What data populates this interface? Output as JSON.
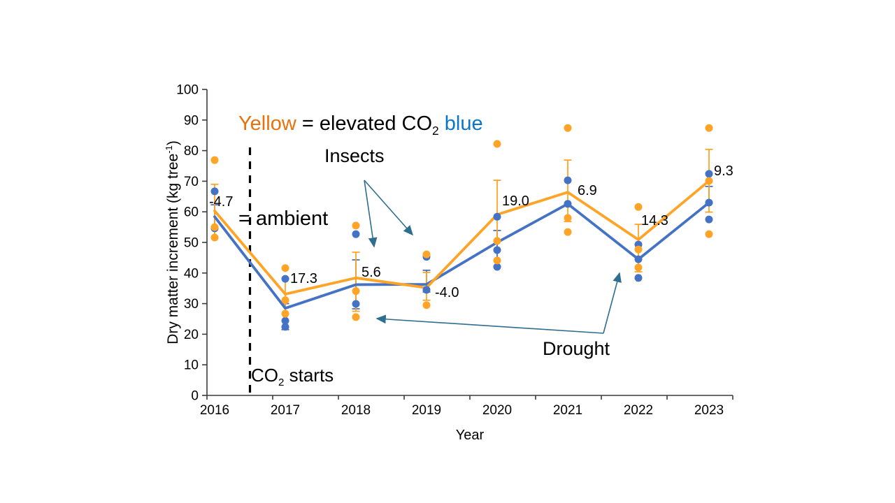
{
  "legend": {
    "yellow_word": "Yellow",
    "mid": " = elevated CO",
    "sub": "2",
    "blue_word": " blue",
    "line2": "= ambient"
  },
  "annotations": {
    "insects": {
      "text": "Insects",
      "points_to": [
        "2018 canopy damage",
        "2019 canopy damage"
      ]
    },
    "drought": {
      "text": "Drought",
      "points_to": [
        "2018 low increment",
        "2022 low increment"
      ]
    },
    "co2_starts": {
      "pre": "CO",
      "sub": "2",
      "post": " starts",
      "line_x_year": 2016.5
    }
  },
  "colors": {
    "elevated": "#FFA426",
    "ambient": "#4472C4",
    "legend_yellow_word": "#E8720C",
    "legend_blue_word": "#0B76C8",
    "arrow": "#2E6E8E",
    "axis": "#3b3b3b",
    "dashed_line": "#000000",
    "label_text": "#000000"
  },
  "chart_data": {
    "type": "line+scatter",
    "x": [
      2016,
      2017,
      2018,
      2019,
      2020,
      2021,
      2022,
      2023
    ],
    "xlabel": "Year",
    "ylabel": {
      "pre": "Dry matter increment (kg tree",
      "sup": "-1",
      "post": ")"
    },
    "ylim": [
      0,
      100
    ],
    "yticks": [
      0,
      10,
      20,
      30,
      40,
      50,
      60,
      70,
      80,
      90,
      100
    ],
    "grid": false,
    "legend_position": "top-center-text",
    "series": [
      {
        "name": "elevated CO2",
        "color_key": "elevated",
        "line": [
          60.3,
          33.1,
          38.4,
          35.2,
          59.1,
          66.4,
          50.9,
          70.1
        ],
        "points": [
          [
            76.9,
            55.0,
            51.6
          ],
          [
            41.6,
            31.1,
            26.7
          ],
          [
            55.5,
            34.1,
            25.6
          ],
          [
            46.1,
            29.5
          ],
          [
            82.2,
            50.5,
            44.1
          ],
          [
            87.4,
            58.0,
            53.4
          ],
          [
            61.6,
            47.7,
            41.8
          ],
          [
            87.4,
            70.1,
            52.7
          ]
        ],
        "error": [
          [
            51.6,
            69.0
          ],
          [
            26.7,
            38.1
          ],
          [
            27.5,
            46.8
          ],
          [
            31.1,
            40.2
          ],
          [
            50.5,
            70.3
          ],
          [
            56.8,
            76.9
          ],
          [
            40.4,
            55.9
          ],
          [
            59.9,
            80.4
          ]
        ]
      },
      {
        "name": "ambient",
        "color_key": "ambient",
        "line": [
          58.4,
          28.5,
          36.2,
          36.3,
          50.0,
          62.6,
          44.5,
          63.0
        ],
        "points": [
          [
            66.7,
            54.6
          ],
          [
            38.1,
            24.4,
            22.4
          ],
          [
            52.7,
            29.9
          ],
          [
            45.3,
            34.5
          ],
          [
            58.4,
            47.5,
            42.0
          ],
          [
            70.3,
            62.6
          ],
          [
            49.3,
            44.5,
            38.4
          ],
          [
            72.4,
            63.0,
            57.5
          ]
        ],
        "error": [
          [
            54.6,
            62.3
          ],
          [
            21.5,
            30.0
          ],
          [
            28.3,
            44.3
          ],
          [
            33.8,
            40.9
          ],
          [
            42.2,
            53.9
          ],
          null,
          null,
          [
            62.8,
            68.3
          ]
        ]
      }
    ],
    "point_labels": [
      {
        "text": "-4.7",
        "year": 2016,
        "value": 63.5,
        "dx": -8
      },
      {
        "text": "17.3",
        "year": 2017,
        "value": 38.4,
        "dx": 7
      },
      {
        "text": "5.6",
        "year": 2018,
        "value": 40.4,
        "dx": 8
      },
      {
        "text": "-4.0",
        "year": 2019,
        "value": 33.8,
        "dx": 12
      },
      {
        "text": "19.0",
        "year": 2020,
        "value": 63.7,
        "dx": 7
      },
      {
        "text": "6.9",
        "year": 2021,
        "value": 67.1,
        "dx": 14
      },
      {
        "text": "14.3",
        "year": 2022,
        "value": 57.3,
        "dx": 4
      },
      {
        "text": "9.3",
        "year": 2023,
        "value": 73.5,
        "dx": 7
      }
    ]
  }
}
